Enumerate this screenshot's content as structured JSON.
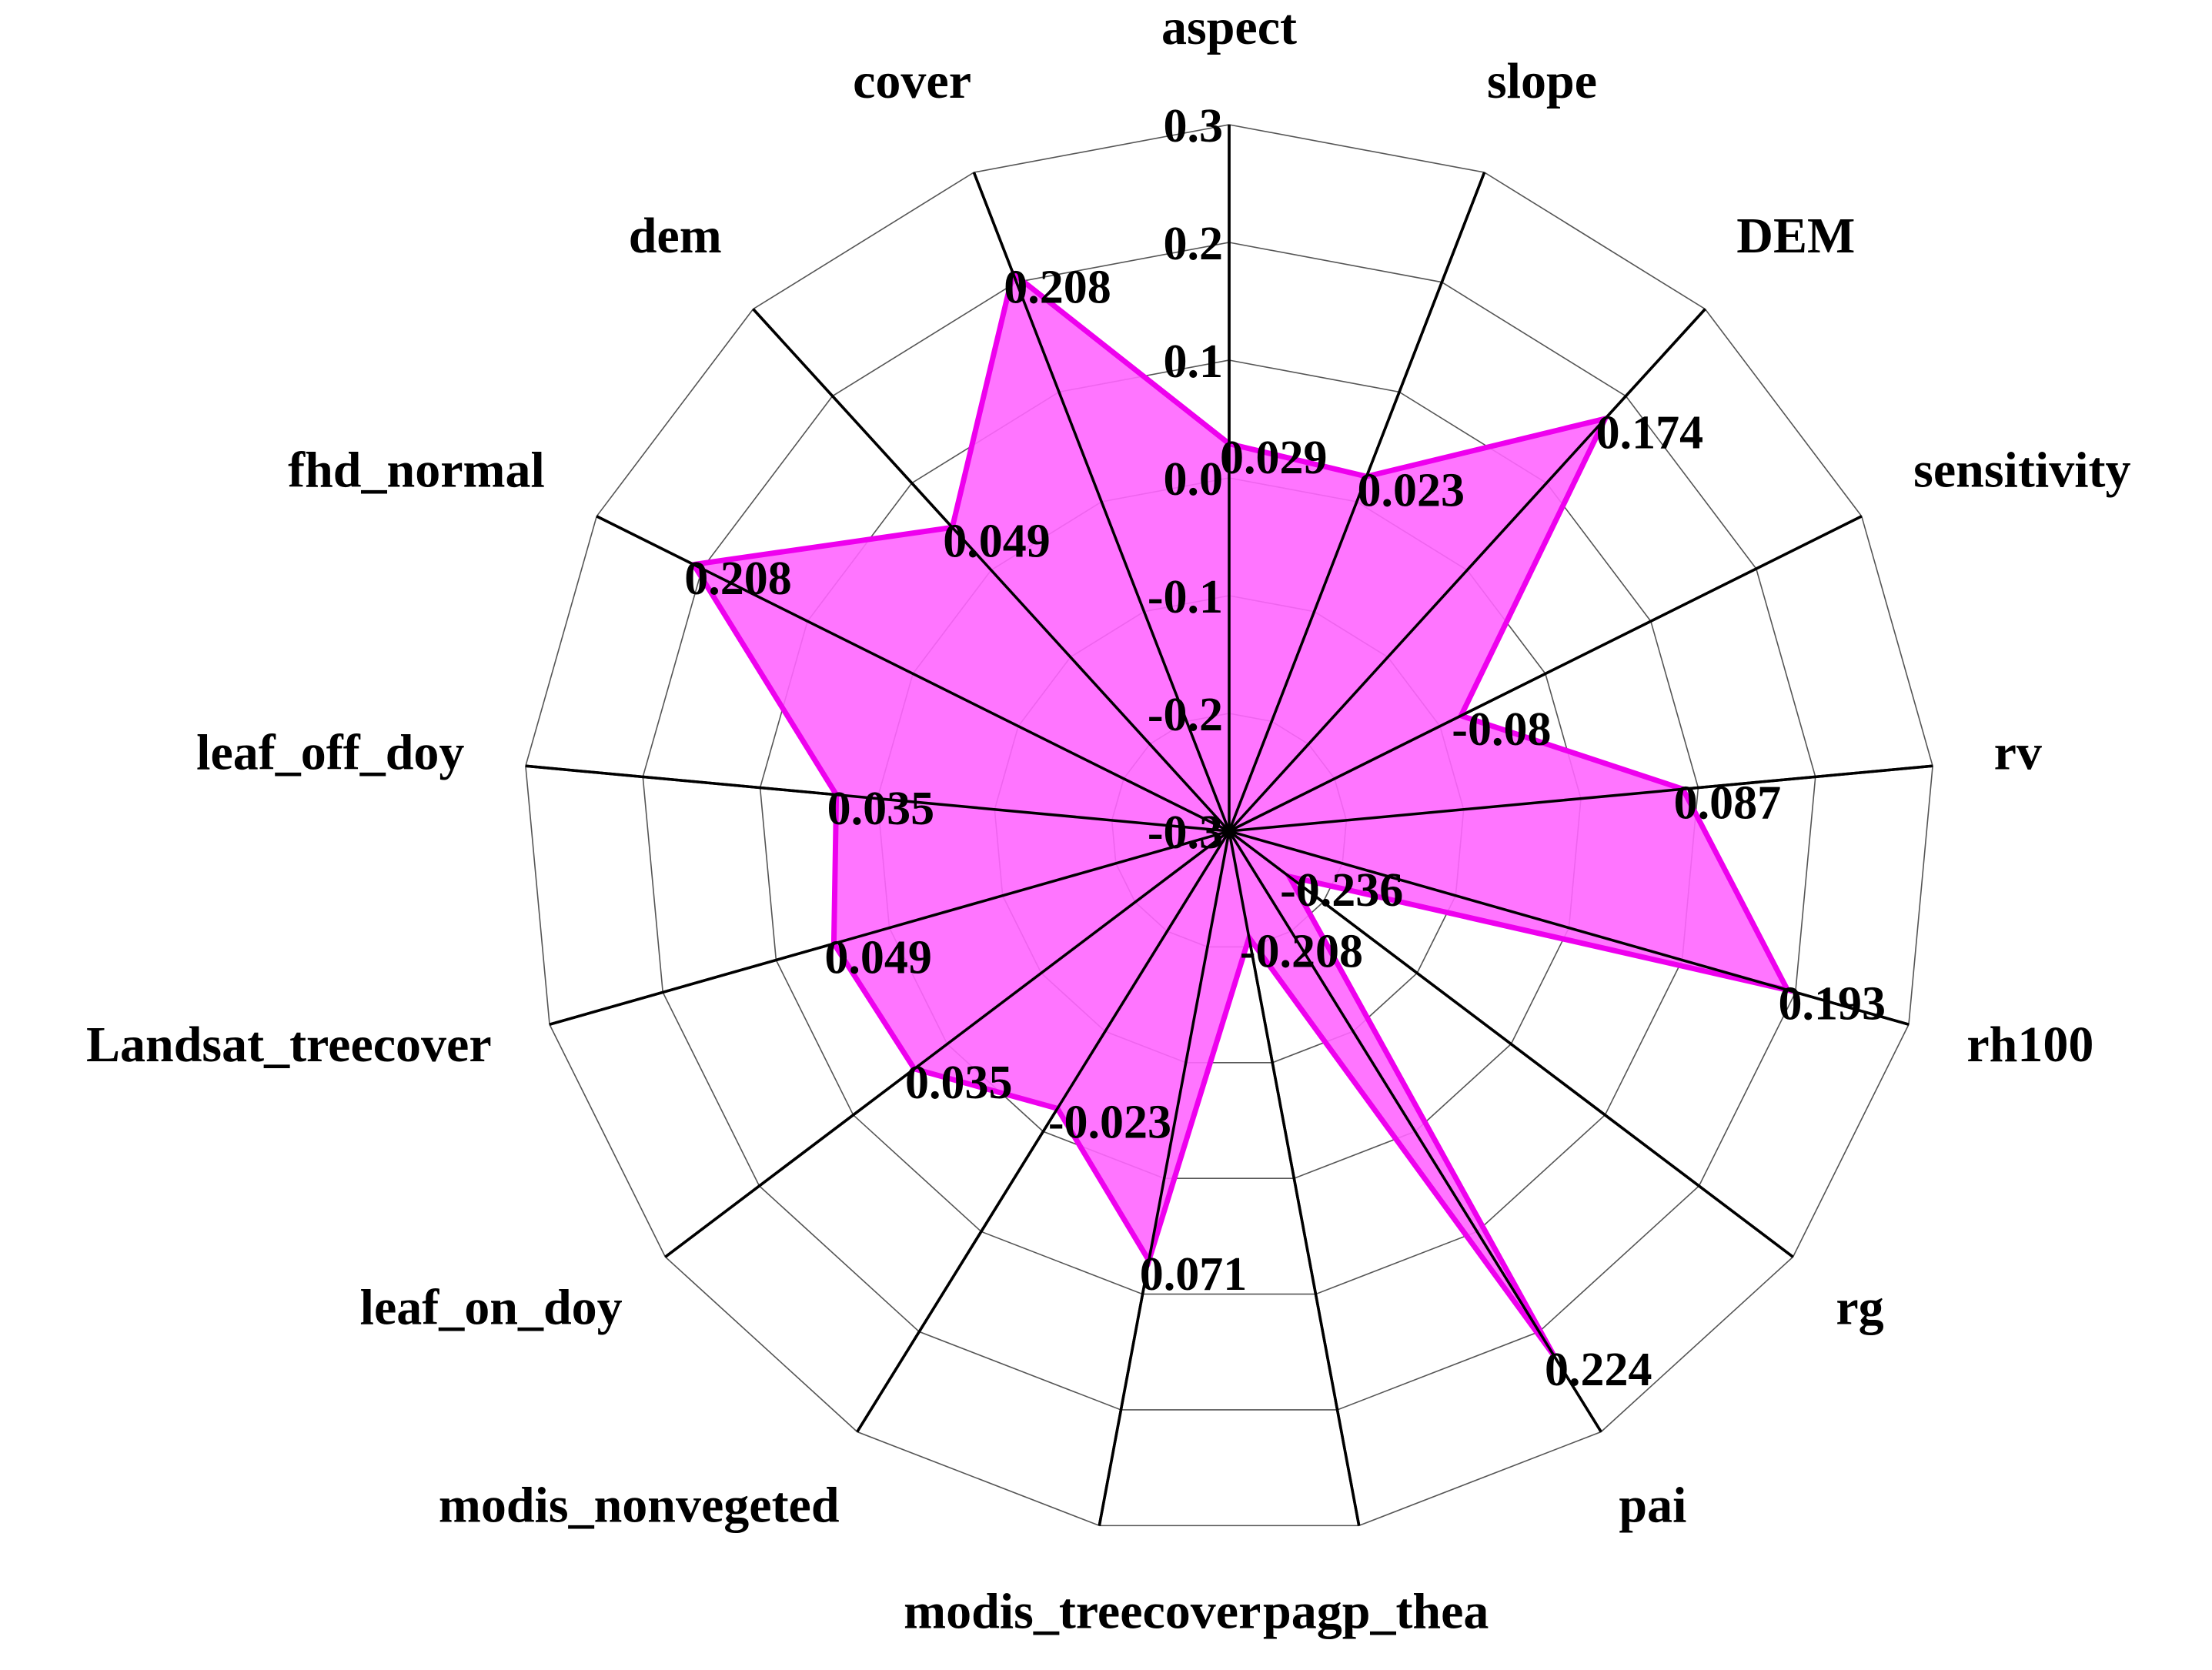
{
  "chart_data": {
    "type": "radar",
    "categories": [
      "aspect",
      "slope",
      "DEM",
      "sensitivity",
      "rv",
      "rh100",
      "rg",
      "pai",
      "pagp_thea",
      "modis_treecover",
      "modis_nonvegeted",
      "leaf_on_doy",
      "Landsat_treecover",
      "leaf_off_doy",
      "fhd_normal",
      "dem",
      "cover"
    ],
    "values": [
      0.029,
      0.023,
      0.174,
      -0.08,
      0.087,
      0.193,
      -0.236,
      0.224,
      -0.208,
      0.071,
      -0.023,
      0.035,
      0.049,
      0.035,
      0.208,
      0.049,
      0.208
    ],
    "color": "#ee00ee",
    "fill": "#ff66ff",
    "rlim": [
      -0.3,
      0.3
    ],
    "rticks": [
      -0.3,
      -0.2,
      -0.1,
      {
        "value": 0,
        "label": "0.0"
      },
      0.1,
      0.2,
      0.3
    ],
    "grid": true
  }
}
